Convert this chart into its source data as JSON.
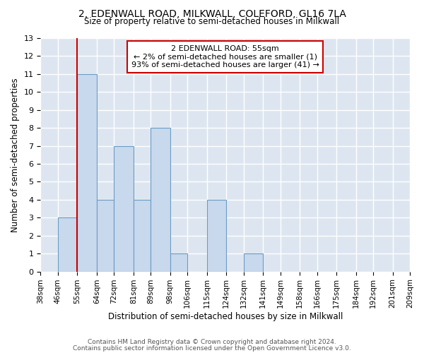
{
  "title1": "2, EDENWALL ROAD, MILKWALL, COLEFORD, GL16 7LA",
  "title2": "Size of property relative to semi-detached houses in Milkwall",
  "xlabel": "Distribution of semi-detached houses by size in Milkwall",
  "ylabel": "Number of semi-detached properties",
  "bin_edges": [
    38,
    46,
    55,
    64,
    72,
    81,
    89,
    98,
    106,
    115,
    124,
    132,
    141,
    149,
    158,
    166,
    175,
    184,
    192,
    201,
    209
  ],
  "bar_heights": [
    0,
    3,
    11,
    4,
    7,
    4,
    8,
    1,
    0,
    4,
    0,
    1,
    0,
    0,
    0,
    0,
    0,
    0,
    0,
    0
  ],
  "bar_color": "#c8d8ed",
  "bar_edgecolor": "#6a9cc4",
  "redline_x": 55,
  "annotation_title": "2 EDENWALL ROAD: 55sqm",
  "annotation_line1": "← 2% of semi-detached houses are smaller (1)",
  "annotation_line2": "93% of semi-detached houses are larger (41) →",
  "annotation_box_color": "#ffffff",
  "annotation_box_edgecolor": "#cc0000",
  "redline_color": "#cc0000",
  "ylim": [
    0,
    13
  ],
  "yticks": [
    0,
    1,
    2,
    3,
    4,
    5,
    6,
    7,
    8,
    9,
    10,
    11,
    12,
    13
  ],
  "tick_labels": [
    "38sqm",
    "46sqm",
    "55sqm",
    "64sqm",
    "72sqm",
    "81sqm",
    "89sqm",
    "98sqm",
    "106sqm",
    "115sqm",
    "124sqm",
    "132sqm",
    "141sqm",
    "149sqm",
    "158sqm",
    "166sqm",
    "175sqm",
    "184sqm",
    "192sqm",
    "201sqm",
    "209sqm"
  ],
  "footer1": "Contains HM Land Registry data © Crown copyright and database right 2024.",
  "footer2": "Contains public sector information licensed under the Open Government Licence v3.0.",
  "bg_color": "#ffffff",
  "plot_bg_color": "#dde6f0"
}
